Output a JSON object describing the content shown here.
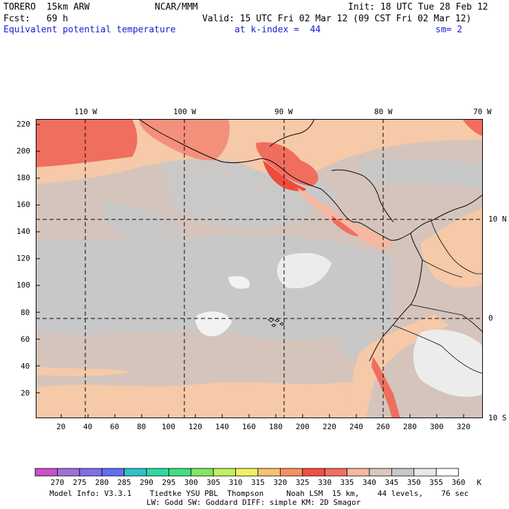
{
  "header": {
    "model": "TORERO  15km ARW",
    "org": "NCAR/MMM",
    "init": "Init: 18 UTC Tue 28 Feb 12",
    "fcst": "Fcst:   69 h",
    "valid": "Valid: 15 UTC Fri 02 Mar 12 (09 CST Fri 02 Mar 12)",
    "field": "Equivalent potential temperature",
    "level": "at k-index =  44",
    "smooth": "sm= 2"
  },
  "map": {
    "lon_labels": [
      "110 W",
      "100 W",
      "90 W",
      "80 W",
      "70 W"
    ],
    "lat_labels": [
      "10 N",
      "0",
      "10 S"
    ],
    "y_ticks": [
      "20",
      "40",
      "60",
      "80",
      "100",
      "120",
      "140",
      "160",
      "180",
      "200",
      "220"
    ],
    "x_ticks": [
      "20",
      "40",
      "60",
      "80",
      "100",
      "120",
      "140",
      "160",
      "180",
      "200",
      "220",
      "240",
      "260",
      "280",
      "300",
      "320"
    ]
  },
  "colorbar": {
    "labels": [
      "270",
      "275",
      "280",
      "285",
      "290",
      "295",
      "300",
      "305",
      "310",
      "315",
      "320",
      "325",
      "330",
      "335",
      "340",
      "345",
      "350",
      "355",
      "360"
    ],
    "unit": "K",
    "colors": [
      "#c850c8",
      "#a070d8",
      "#8070e8",
      "#6070f0",
      "#30c0c8",
      "#30d8a0",
      "#40e080",
      "#80e860",
      "#c0f060",
      "#f0f060",
      "#f8c070",
      "#f89060",
      "#f05040",
      "#f07060",
      "#f8b8a0",
      "#d8c8c0",
      "#c8c8c8",
      "#e8e8e8",
      "#ffffff"
    ]
  },
  "footer": {
    "line1": "Model Info: V3.3.1    Tiedtke YSU PBL  Thompson     Noah LSM  15 km,    44 levels,    76 sec",
    "line2": "LW: Godd SW: Goddard DIFF: simple KM: 2D Smagor"
  }
}
